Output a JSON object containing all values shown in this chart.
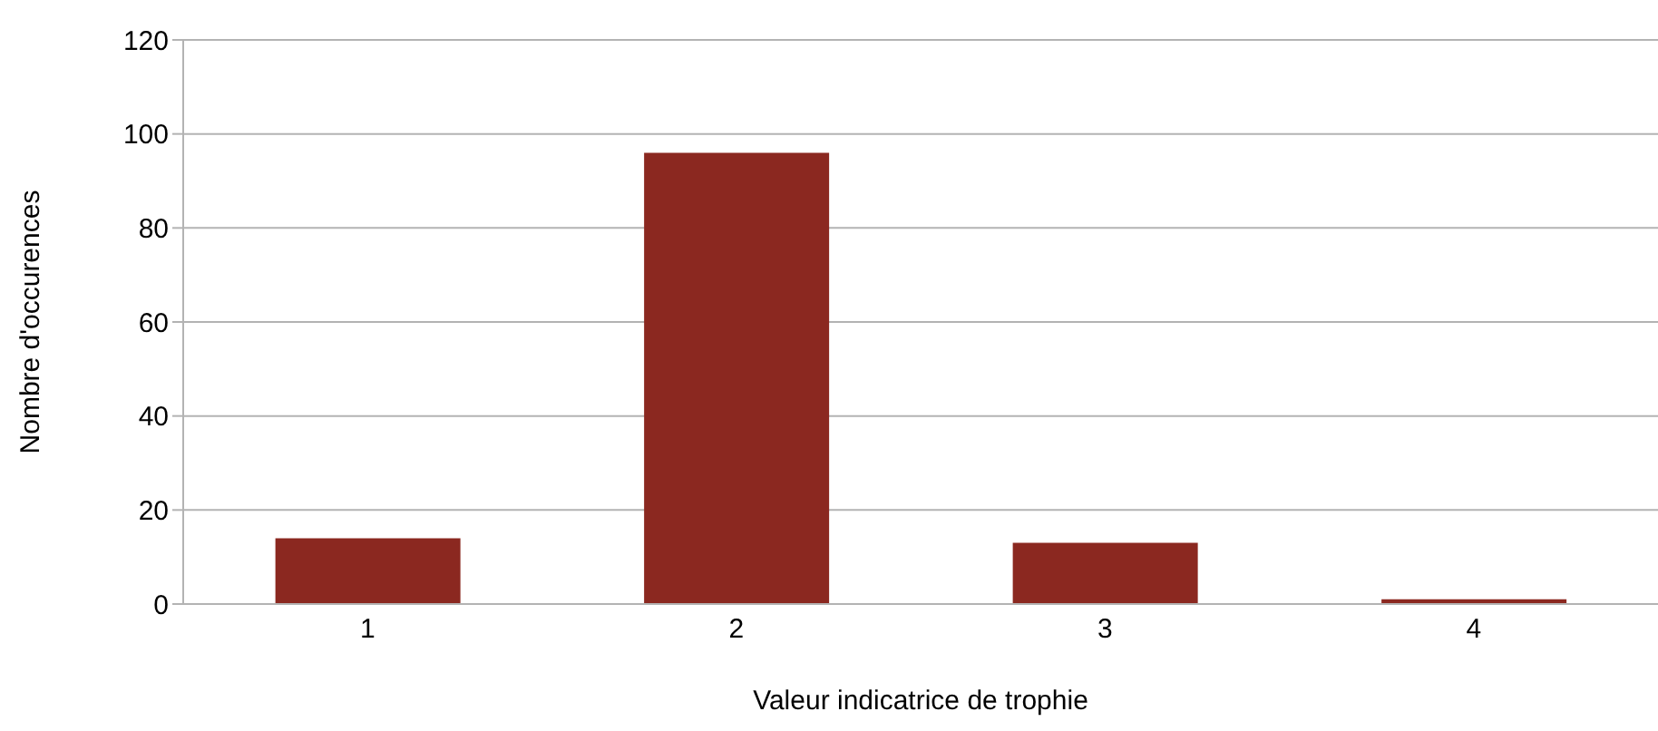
{
  "chart_data": {
    "type": "bar",
    "xlabel": "Valeur indicatrice de trophie",
    "ylabel": "Nombre d'occurences",
    "categories": [
      "1",
      "2",
      "3",
      "4"
    ],
    "values": [
      14,
      96,
      13,
      1
    ],
    "color": "#8b2820",
    "ylim": [
      0,
      120
    ],
    "yticks": [
      0,
      20,
      40,
      60,
      80,
      100,
      120
    ],
    "grid": "y"
  }
}
